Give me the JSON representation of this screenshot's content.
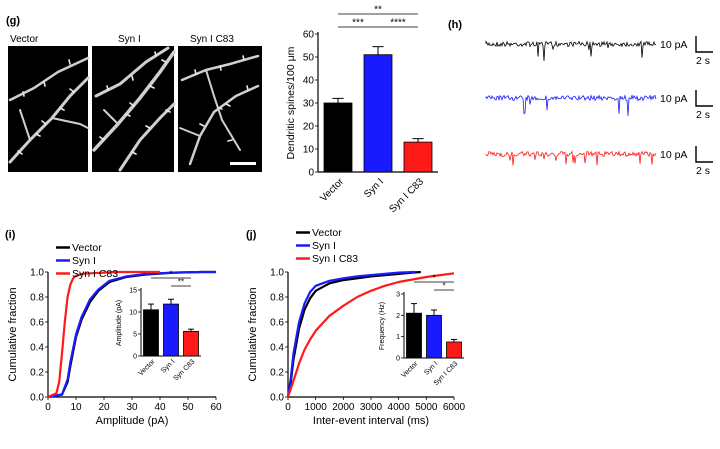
{
  "panels": {
    "g": "(g)",
    "h": "(h)",
    "i": "(i)",
    "j": "(j)"
  },
  "colors": {
    "vector": "#000000",
    "syn1": "#1a1aff",
    "c83": "#ff1a1a"
  },
  "micrographs": {
    "labels": [
      "Vector",
      "Syn I",
      "Syn I C83"
    ]
  },
  "traces": {
    "scale_y": "10 pA",
    "scale_x": "2 s",
    "rows": [
      "vector",
      "syn1",
      "c83"
    ]
  },
  "chart_data": [
    {
      "id": "g-bar",
      "type": "bar",
      "categories": [
        "Vector",
        "Syn I",
        "Syn I C83"
      ],
      "values": [
        30,
        51,
        13
      ],
      "errors": [
        2,
        3.5,
        1.5
      ],
      "ylabel": "Dendritic spines/100 μm",
      "ylim": [
        0,
        60
      ],
      "yticks": [
        0,
        10,
        20,
        30,
        40,
        50,
        60
      ],
      "significance": [
        {
          "from": 0,
          "to": 2,
          "label": "**"
        },
        {
          "from": 0,
          "to": 1,
          "label": "***"
        },
        {
          "from": 1,
          "to": 2,
          "label": "****"
        }
      ]
    },
    {
      "id": "i-cdf",
      "type": "line",
      "xlabel": "Amplitude (pA)",
      "ylabel": "Cumulative fraction",
      "xlim": [
        0,
        60
      ],
      "ylim": [
        0,
        1
      ],
      "xticks": [
        0,
        10,
        20,
        30,
        40,
        50,
        60
      ],
      "yticks": [
        0.0,
        0.2,
        0.4,
        0.6,
        0.8,
        1.0
      ],
      "legend": [
        "Vector",
        "Syn I",
        "Syn I C83"
      ],
      "series": [
        {
          "name": "Vector",
          "color": "#000000",
          "x": [
            0,
            5,
            7,
            8,
            10,
            12,
            15,
            18,
            22,
            28,
            35,
            45,
            55,
            60
          ],
          "y": [
            0,
            0.02,
            0.12,
            0.25,
            0.48,
            0.62,
            0.76,
            0.85,
            0.92,
            0.96,
            0.98,
            0.995,
            1.0,
            1.0
          ]
        },
        {
          "name": "Syn I",
          "color": "#1a1aff",
          "x": [
            0,
            5,
            7,
            8,
            10,
            12,
            15,
            18,
            22,
            28,
            35,
            45,
            55,
            60
          ],
          "y": [
            0,
            0.02,
            0.14,
            0.28,
            0.5,
            0.64,
            0.78,
            0.86,
            0.93,
            0.965,
            0.985,
            0.995,
            1.0,
            1.0
          ]
        },
        {
          "name": "Syn I C83",
          "color": "#ff1a1a",
          "x": [
            0,
            3,
            4,
            5,
            6,
            7,
            8,
            9,
            10,
            12,
            15,
            20,
            25,
            30,
            40
          ],
          "y": [
            0,
            0.03,
            0.12,
            0.35,
            0.6,
            0.8,
            0.9,
            0.95,
            0.97,
            0.985,
            0.99,
            0.995,
            1.0,
            1.0,
            1.0
          ]
        }
      ]
    },
    {
      "id": "i-inset",
      "type": "bar",
      "categories": [
        "Vector",
        "Syn I",
        "Syn C83"
      ],
      "values": [
        10.5,
        11.8,
        5.6
      ],
      "errors": [
        1.3,
        1.1,
        0.5
      ],
      "ylabel": "Amplitude (pA)",
      "ylim": [
        0,
        15
      ],
      "yticks": [
        0,
        5,
        10,
        15
      ],
      "significance": [
        {
          "from": 0,
          "to": 2,
          "label": "*"
        },
        {
          "from": 1,
          "to": 2,
          "label": "**"
        }
      ]
    },
    {
      "id": "j-cdf",
      "type": "line",
      "xlabel": "Inter-event interval (ms)",
      "ylabel": "Cumulative fraction",
      "xlim": [
        0,
        6000
      ],
      "ylim": [
        0,
        1
      ],
      "xticks": [
        0,
        1000,
        2000,
        3000,
        4000,
        5000,
        6000
      ],
      "yticks": [
        0.0,
        0.2,
        0.4,
        0.6,
        0.8,
        1.0
      ],
      "legend": [
        "Vector",
        "Syn I",
        "Syn I C83"
      ],
      "series": [
        {
          "name": "Vector",
          "color": "#000000",
          "x": [
            0,
            100,
            200,
            400,
            600,
            800,
            1000,
            1500,
            2000,
            2500,
            3000,
            3500,
            4000,
            4500,
            4800
          ],
          "y": [
            0,
            0.12,
            0.3,
            0.55,
            0.7,
            0.79,
            0.85,
            0.91,
            0.935,
            0.95,
            0.965,
            0.975,
            0.985,
            0.995,
            1.0
          ]
        },
        {
          "name": "Syn I",
          "color": "#1a1aff",
          "x": [
            0,
            100,
            200,
            400,
            600,
            800,
            1000,
            1500,
            2000,
            2500,
            3000,
            3500,
            4000,
            4600
          ],
          "y": [
            0,
            0.15,
            0.35,
            0.6,
            0.75,
            0.84,
            0.89,
            0.93,
            0.95,
            0.965,
            0.975,
            0.985,
            0.995,
            1.0
          ]
        },
        {
          "name": "Syn I C83",
          "color": "#ff1a1a",
          "x": [
            0,
            200,
            400,
            600,
            800,
            1000,
            1500,
            2000,
            2500,
            3000,
            3500,
            4000,
            4500,
            5000,
            5500,
            6000
          ],
          "y": [
            0,
            0.13,
            0.27,
            0.38,
            0.46,
            0.53,
            0.65,
            0.73,
            0.8,
            0.85,
            0.89,
            0.92,
            0.94,
            0.96,
            0.975,
            0.99
          ]
        }
      ]
    },
    {
      "id": "j-inset",
      "type": "bar",
      "categories": [
        "Vector",
        "Syn I",
        "Syn I C83"
      ],
      "values": [
        2.1,
        2.0,
        0.75
      ],
      "errors": [
        0.45,
        0.25,
        0.12
      ],
      "ylabel": "Frequency (Hz)",
      "ylim": [
        0,
        3
      ],
      "yticks": [
        0,
        1,
        2,
        3
      ],
      "significance": [
        {
          "from": 0,
          "to": 2,
          "label": "*"
        },
        {
          "from": 1,
          "to": 2,
          "label": "*"
        }
      ]
    }
  ]
}
